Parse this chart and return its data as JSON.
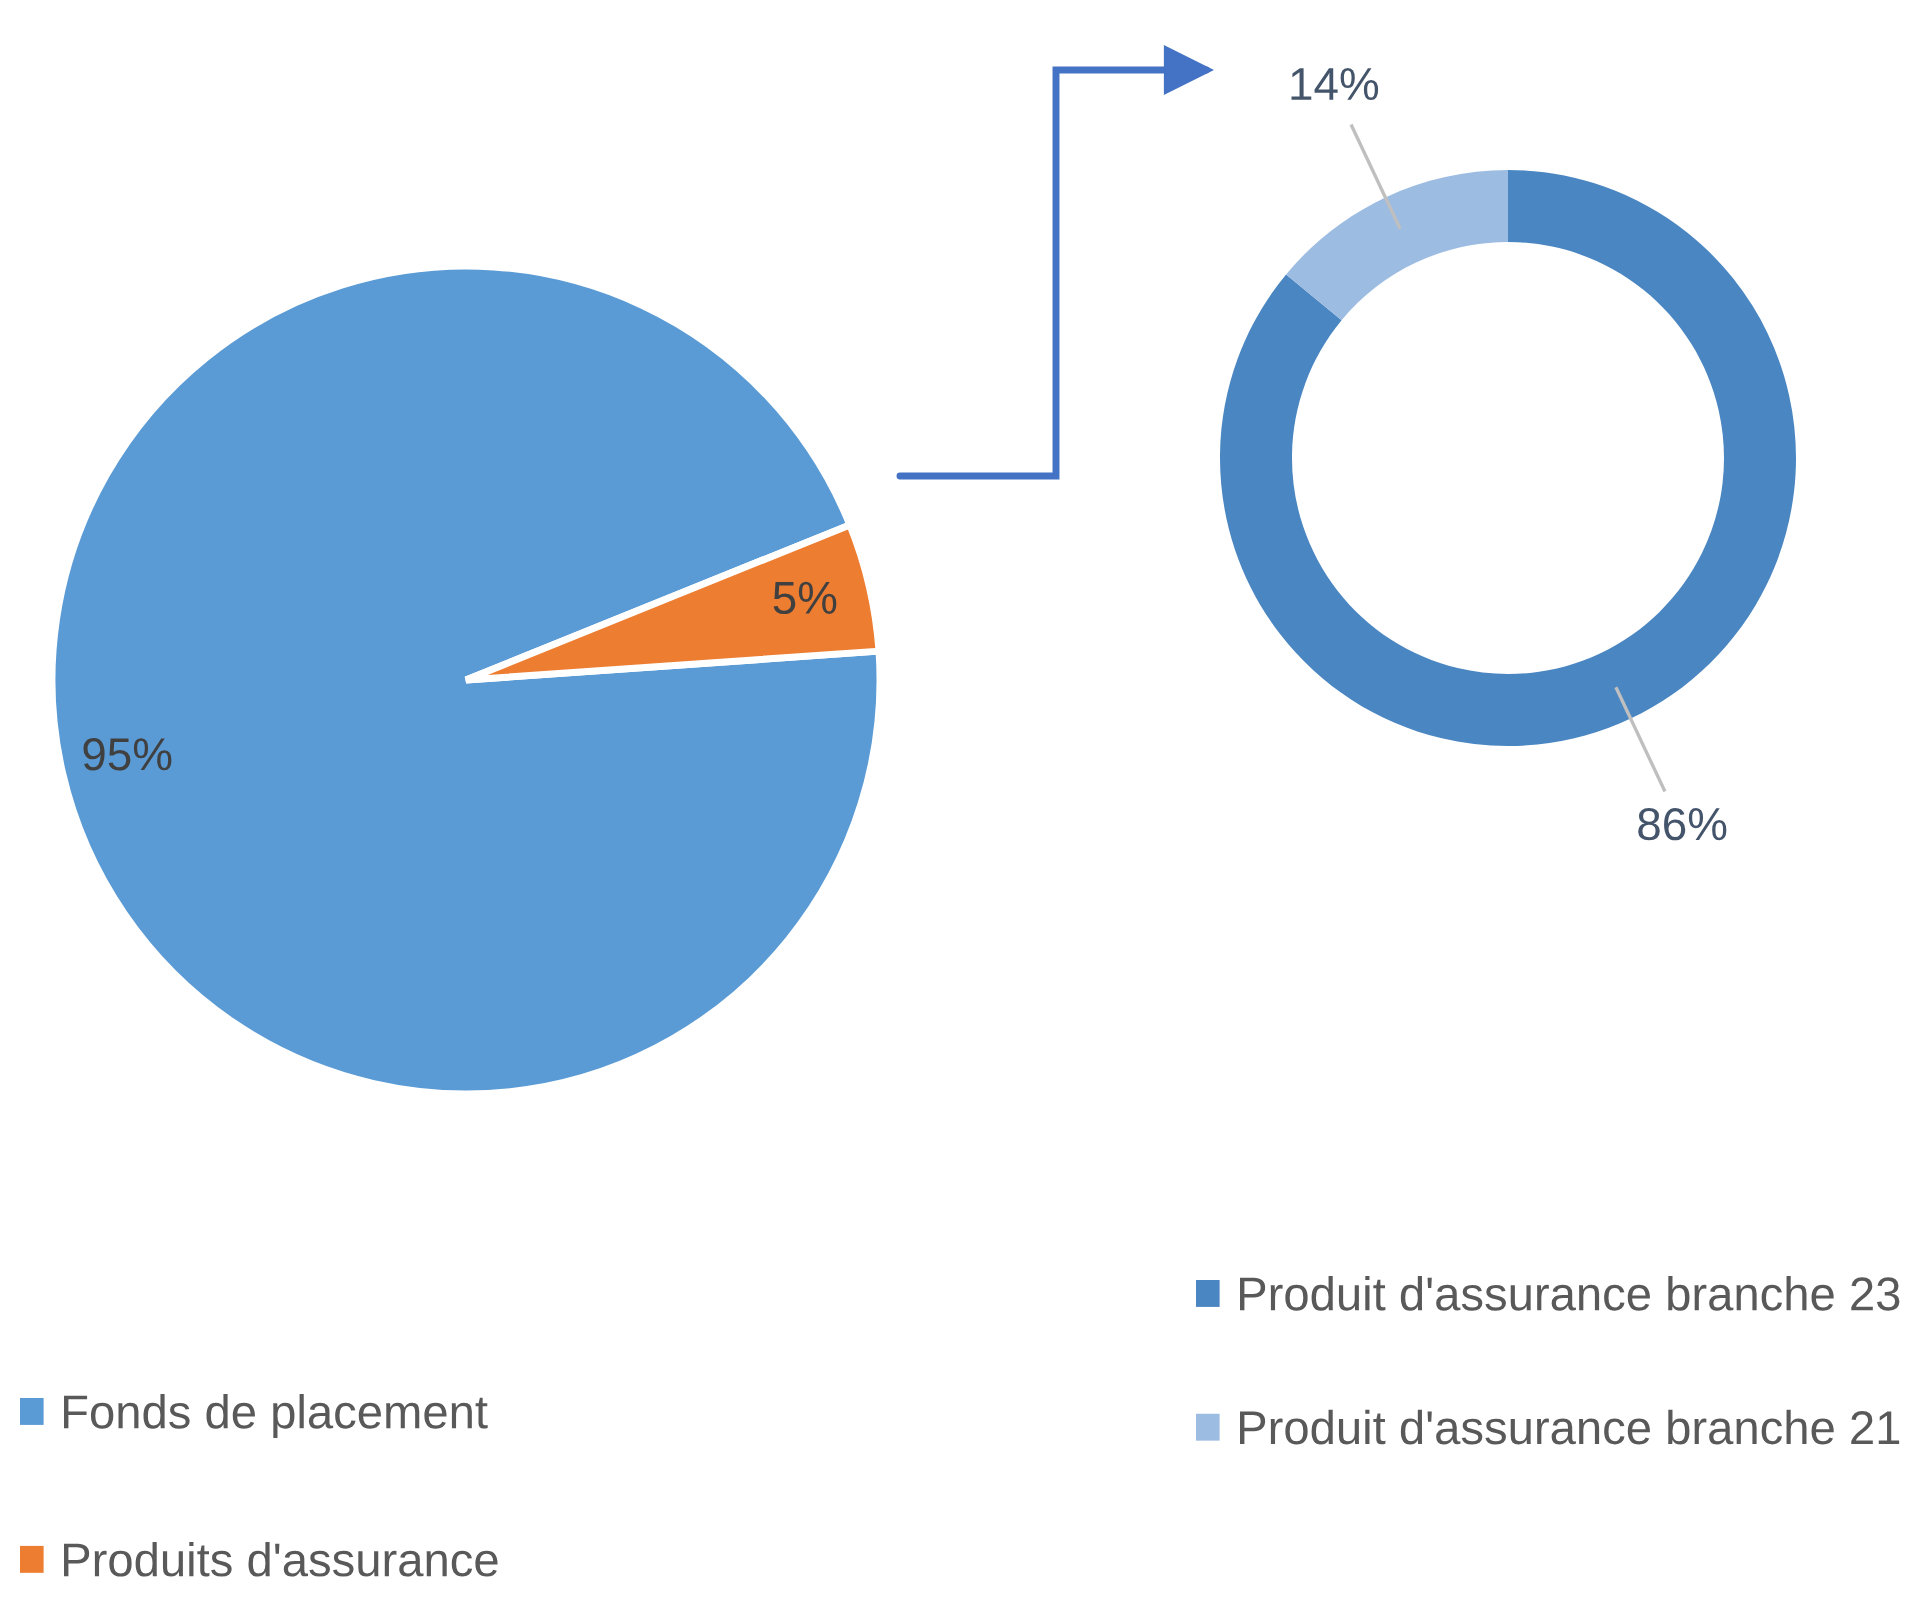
{
  "chart_data": [
    {
      "type": "pie",
      "categories": [
        "Fonds de placement",
        "Produits d'assurance"
      ],
      "values": [
        95,
        5
      ],
      "colors": [
        "#5b9bd5",
        "#ed7d31"
      ],
      "value_labels": [
        "95%",
        "5%"
      ],
      "legend": "bottom"
    },
    {
      "type": "donut",
      "categories": [
        "Produit d'assurance branche 23",
        "Produit d'assurance branche 21"
      ],
      "values": [
        86,
        14
      ],
      "colors": [
        "#4a86c2",
        "#9dbce2"
      ],
      "value_labels": [
        "86%",
        "14%"
      ],
      "legend": "bottom"
    }
  ]
}
